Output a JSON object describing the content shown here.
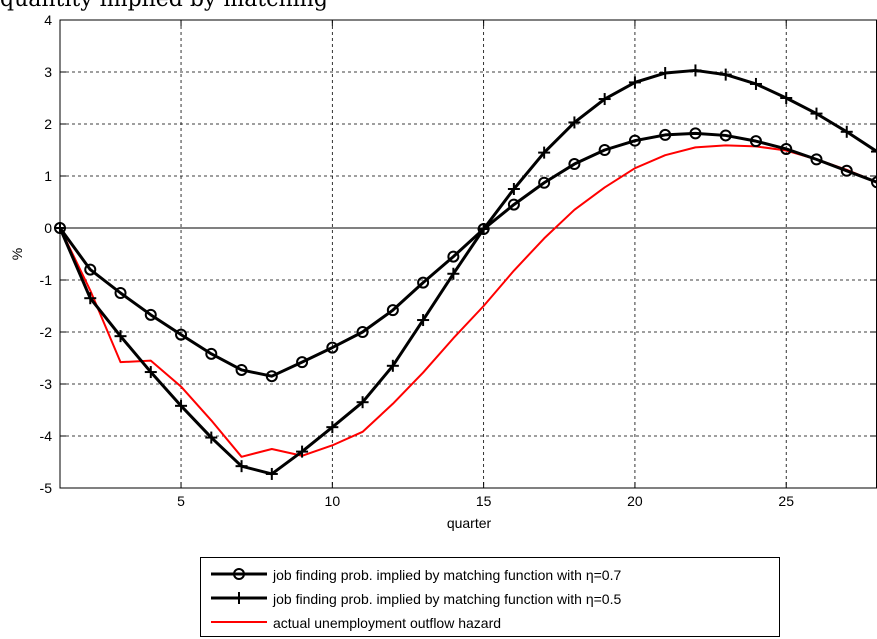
{
  "heading": "quantity implied by matching",
  "chart_data": {
    "type": "line",
    "xlabel": "quarter",
    "ylabel": "%",
    "xlim": [
      1,
      28
    ],
    "ylim": [
      -5,
      4
    ],
    "xticks": [
      5,
      10,
      15,
      20,
      25
    ],
    "yticks": [
      -5,
      -4,
      -3,
      -2,
      -1,
      0,
      1,
      2,
      3,
      4
    ],
    "grid": true,
    "legend_position": "bottom",
    "x": [
      1,
      2,
      3,
      4,
      5,
      6,
      7,
      8,
      9,
      10,
      11,
      12,
      13,
      14,
      15,
      16,
      17,
      18,
      19,
      20,
      21,
      22,
      23,
      24,
      25,
      26,
      27,
      28
    ],
    "series": [
      {
        "name": "job finding prob. implied by matching function with η=0.7",
        "color": "#000000",
        "marker": "circle",
        "values": [
          0,
          -0.8,
          -1.25,
          -1.67,
          -2.05,
          -2.42,
          -2.73,
          -2.85,
          -2.58,
          -2.3,
          -2.0,
          -1.58,
          -1.05,
          -0.55,
          -0.02,
          0.45,
          0.87,
          1.23,
          1.5,
          1.68,
          1.79,
          1.82,
          1.78,
          1.67,
          1.52,
          1.32,
          1.1,
          0.88
        ]
      },
      {
        "name": "job finding prob. implied by matching function with η=0.5",
        "color": "#000000",
        "marker": "plus",
        "values": [
          0,
          -1.35,
          -2.08,
          -2.77,
          -3.42,
          -4.03,
          -4.58,
          -4.73,
          -4.3,
          -3.83,
          -3.35,
          -2.65,
          -1.77,
          -0.88,
          -0.02,
          0.75,
          1.45,
          2.03,
          2.48,
          2.8,
          2.98,
          3.03,
          2.95,
          2.77,
          2.5,
          2.2,
          1.85,
          1.47
        ]
      },
      {
        "name": "actual unemployment outflow hazard",
        "color": "#ff0000",
        "marker": "none",
        "values": [
          0,
          -1.2,
          -2.58,
          -2.55,
          -3.05,
          -3.7,
          -4.4,
          -4.25,
          -4.38,
          -4.18,
          -3.92,
          -3.38,
          -2.78,
          -2.12,
          -1.5,
          -0.82,
          -0.2,
          0.35,
          0.78,
          1.15,
          1.4,
          1.55,
          1.59,
          1.57,
          1.49,
          1.32,
          1.12,
          0.88
        ]
      }
    ]
  }
}
